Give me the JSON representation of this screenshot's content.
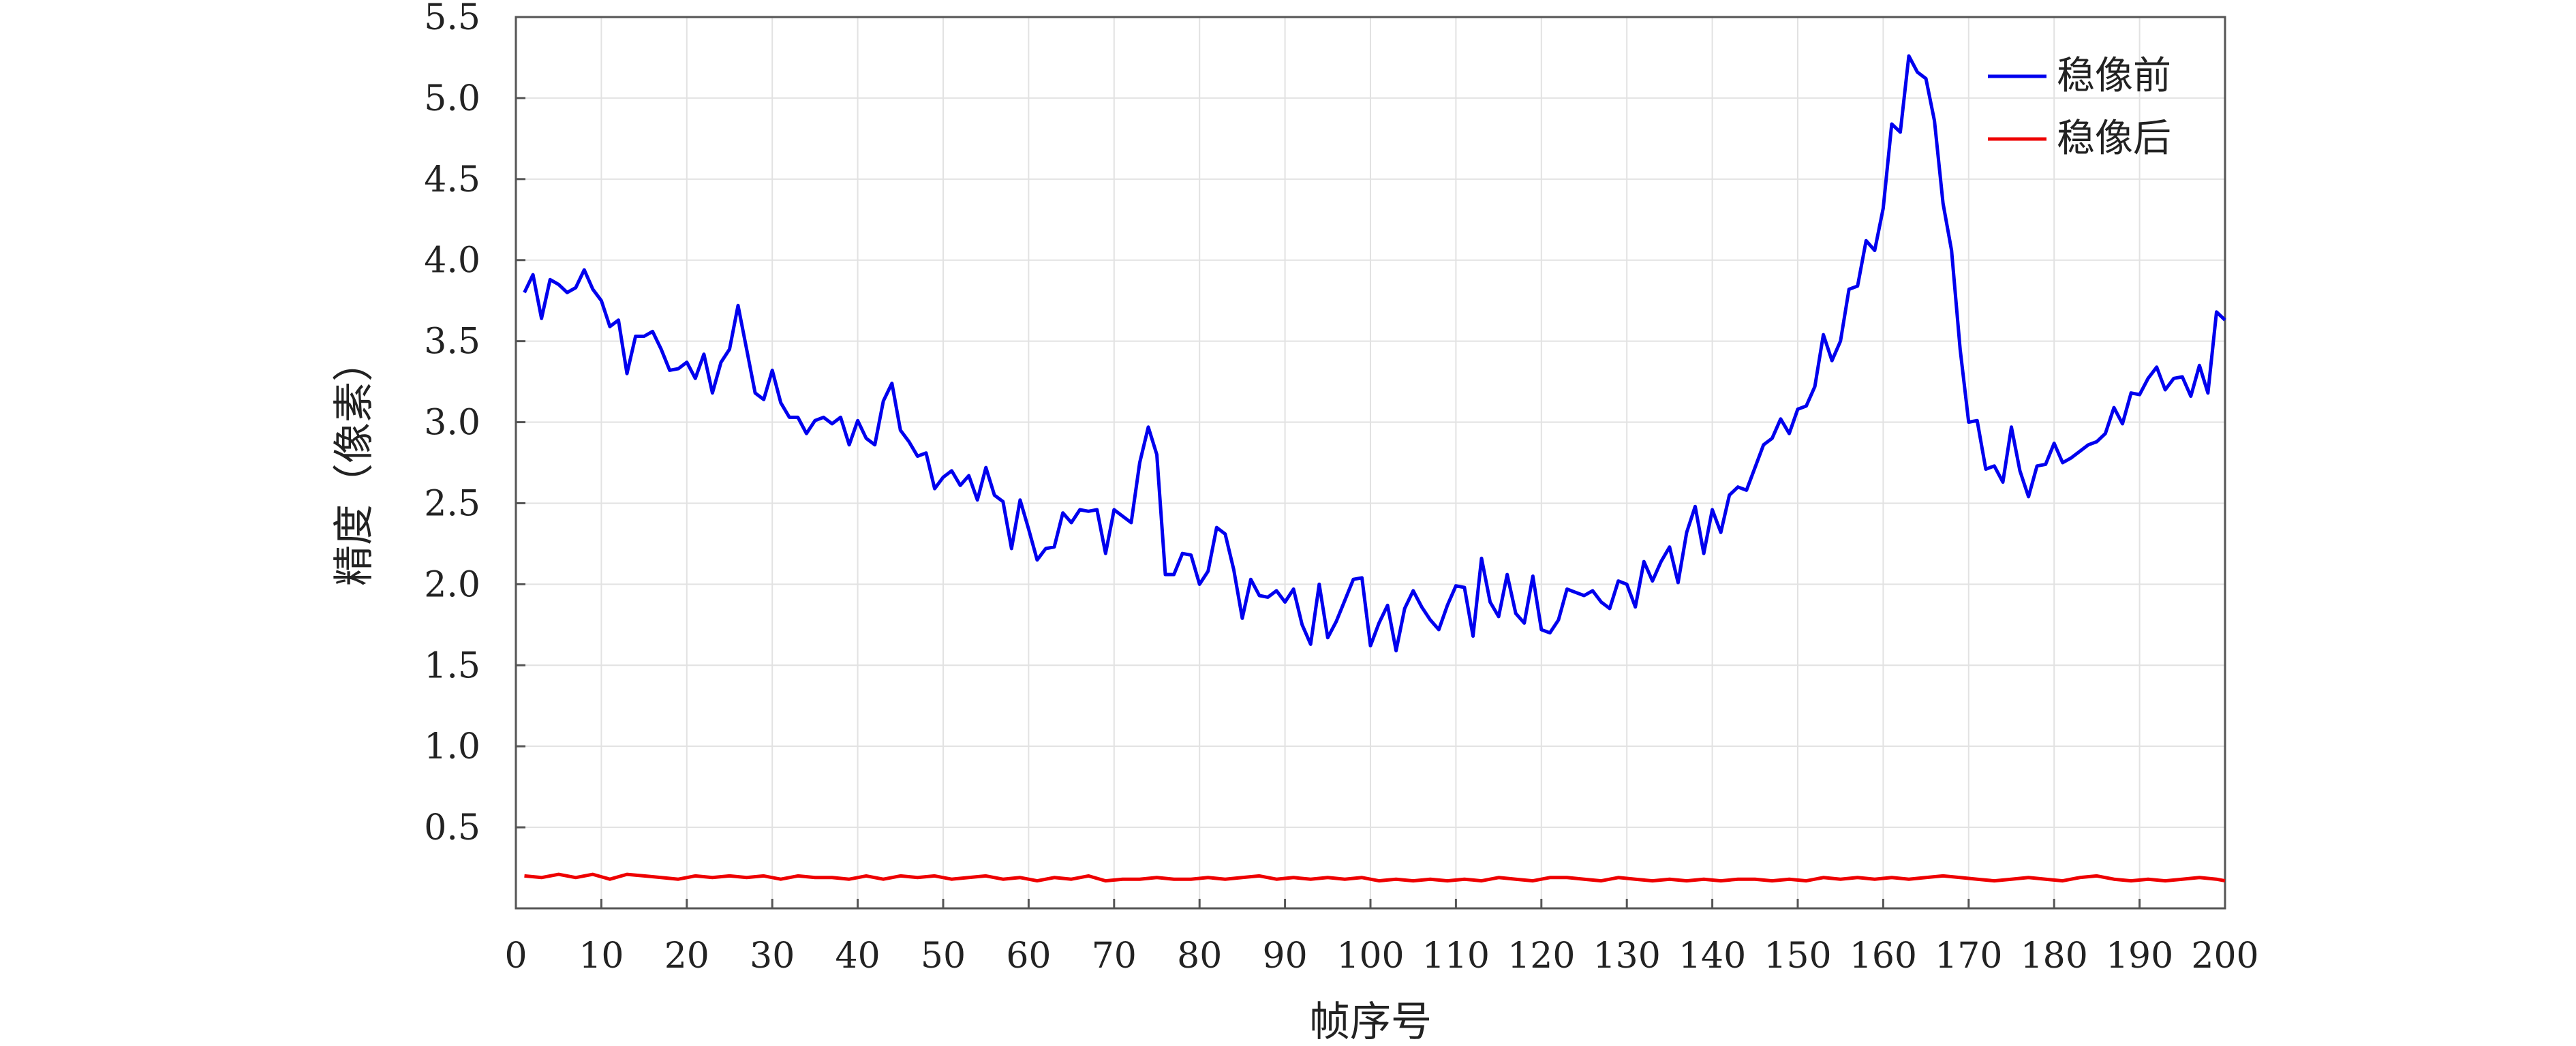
{
  "chart_data": {
    "type": "line",
    "title": "",
    "xlabel": "帧序号",
    "ylabel": "精度（像素）",
    "xlim": [
      0,
      200
    ],
    "ylim": [
      0,
      5.5
    ],
    "x_ticks": [
      0,
      10,
      20,
      30,
      40,
      50,
      60,
      70,
      80,
      90,
      100,
      110,
      120,
      130,
      140,
      150,
      160,
      170,
      180,
      190,
      200
    ],
    "x_tick_labels": [
      "0",
      "10",
      "20",
      "30",
      "40",
      "50",
      "60",
      "70",
      "80",
      "90",
      "100",
      "110",
      "120",
      "130",
      "140",
      "150",
      "160",
      "170",
      "180",
      "190",
      "200"
    ],
    "y_ticks": [
      0.5,
      1.0,
      1.5,
      2.0,
      2.5,
      3.0,
      3.5,
      4.0,
      4.5,
      5.0,
      5.5
    ],
    "y_tick_labels": [
      "0.5",
      "1.0",
      "1.5",
      "2.0",
      "2.5",
      "3.0",
      "3.5",
      "4.0",
      "4.5",
      "5.0",
      "5.5"
    ],
    "grid": true,
    "legend_position": "top-right",
    "series": [
      {
        "name": "稳像前",
        "color": "#0000ee",
        "x": [
          1,
          2,
          3,
          4,
          5,
          6,
          7,
          8,
          9,
          10,
          11,
          12,
          13,
          14,
          15,
          16,
          17,
          18,
          19,
          20,
          21,
          22,
          23,
          24,
          25,
          26,
          27,
          28,
          29,
          30,
          31,
          32,
          33,
          34,
          35,
          36,
          37,
          38,
          39,
          40,
          41,
          42,
          43,
          44,
          45,
          46,
          47,
          48,
          49,
          50,
          51,
          52,
          53,
          54,
          55,
          56,
          57,
          58,
          59,
          60,
          61,
          62,
          63,
          64,
          65,
          66,
          67,
          68,
          69,
          70,
          71,
          72,
          73,
          74,
          75,
          76,
          77,
          78,
          79,
          80,
          81,
          82,
          83,
          84,
          85,
          86,
          87,
          88,
          89,
          90,
          91,
          92,
          93,
          94,
          95,
          96,
          97,
          98,
          99,
          100,
          101,
          102,
          103,
          104,
          105,
          106,
          107,
          108,
          109,
          110,
          111,
          112,
          113,
          114,
          115,
          116,
          117,
          118,
          119,
          120,
          121,
          122,
          123,
          124,
          125,
          126,
          127,
          128,
          129,
          130,
          131,
          132,
          133,
          134,
          135,
          136,
          137,
          138,
          139,
          140,
          141,
          142,
          143,
          144,
          145,
          146,
          147,
          148,
          149,
          150,
          151,
          152,
          153,
          154,
          155,
          156,
          157,
          158,
          159,
          160,
          161,
          162,
          163,
          164,
          165,
          166,
          167,
          168,
          169,
          170,
          171,
          172,
          173,
          174,
          175,
          176,
          177,
          178,
          179,
          180,
          181,
          182,
          183,
          184,
          185,
          186,
          187,
          188,
          189,
          190,
          191,
          192,
          193,
          194,
          195,
          196,
          197,
          198,
          199,
          200
        ],
        "y": [
          3.8,
          3.91,
          3.64,
          3.88,
          3.85,
          3.8,
          3.83,
          3.94,
          3.82,
          3.75,
          3.59,
          3.63,
          3.3,
          3.53,
          3.53,
          3.56,
          3.45,
          3.32,
          3.33,
          3.37,
          3.27,
          3.42,
          3.18,
          3.37,
          3.45,
          3.72,
          3.45,
          3.18,
          3.14,
          3.32,
          3.12,
          3.03,
          3.03,
          2.93,
          3.01,
          3.03,
          2.99,
          3.03,
          2.86,
          3.01,
          2.9,
          2.86,
          3.13,
          3.24,
          2.95,
          2.88,
          2.79,
          2.81,
          2.59,
          2.66,
          2.7,
          2.61,
          2.67,
          2.52,
          2.72,
          2.55,
          2.51,
          2.22,
          2.52,
          2.34,
          2.15,
          2.22,
          2.23,
          2.44,
          2.38,
          2.46,
          2.45,
          2.46,
          2.19,
          2.46,
          2.42,
          2.38,
          2.75,
          2.97,
          2.8,
          2.06,
          2.06,
          2.19,
          2.18,
          2.0,
          2.08,
          2.35,
          2.31,
          2.09,
          1.79,
          2.03,
          1.93,
          1.92,
          1.96,
          1.89,
          1.97,
          1.75,
          1.63,
          2.0,
          1.67,
          1.77,
          1.9,
          2.03,
          2.04,
          1.62,
          1.76,
          1.87,
          1.59,
          1.85,
          1.96,
          1.86,
          1.78,
          1.72,
          1.87,
          1.99,
          1.98,
          1.68,
          2.16,
          1.89,
          1.8,
          2.06,
          1.82,
          1.76,
          2.05,
          1.72,
          1.7,
          1.78,
          1.97,
          1.95,
          1.93,
          1.96,
          1.89,
          1.85,
          2.02,
          2.0,
          1.86,
          2.14,
          2.02,
          2.14,
          2.23,
          2.01,
          2.32,
          2.48,
          2.19,
          2.46,
          2.32,
          2.55,
          2.6,
          2.58,
          2.72,
          2.86,
          2.9,
          3.02,
          2.93,
          3.08,
          3.1,
          3.22,
          3.54,
          3.38,
          3.5,
          3.82,
          3.84,
          4.12,
          4.06,
          4.32,
          4.84,
          4.79,
          5.26,
          5.16,
          5.12,
          4.86,
          4.35,
          4.06,
          3.45,
          3.0,
          3.01,
          2.71,
          2.73,
          2.63,
          2.97,
          2.7,
          2.54,
          2.73,
          2.74,
          2.87,
          2.75,
          2.78,
          2.82,
          2.86,
          2.88,
          2.93,
          3.09,
          2.99,
          3.18,
          3.17,
          3.27,
          3.34,
          3.2,
          3.27,
          3.28,
          3.16,
          3.35,
          3.18,
          3.68,
          3.63
        ]
      },
      {
        "name": "稳像后",
        "color": "#ee0000",
        "x": [
          1,
          3,
          5,
          7,
          9,
          11,
          13,
          15,
          17,
          19,
          21,
          23,
          25,
          27,
          29,
          31,
          33,
          35,
          37,
          39,
          41,
          43,
          45,
          47,
          49,
          51,
          53,
          55,
          57,
          59,
          61,
          63,
          65,
          67,
          69,
          71,
          73,
          75,
          77,
          79,
          81,
          83,
          85,
          87,
          89,
          91,
          93,
          95,
          97,
          99,
          101,
          103,
          105,
          107,
          109,
          111,
          113,
          115,
          117,
          119,
          121,
          123,
          125,
          127,
          129,
          131,
          133,
          135,
          137,
          139,
          141,
          143,
          145,
          147,
          149,
          151,
          153,
          155,
          157,
          159,
          161,
          163,
          165,
          167,
          169,
          171,
          173,
          175,
          177,
          179,
          181,
          183,
          185,
          187,
          189,
          191,
          193,
          195,
          197,
          199,
          200
        ],
        "y": [
          0.2,
          0.19,
          0.21,
          0.19,
          0.21,
          0.18,
          0.21,
          0.2,
          0.19,
          0.18,
          0.2,
          0.19,
          0.2,
          0.19,
          0.2,
          0.18,
          0.2,
          0.19,
          0.19,
          0.18,
          0.2,
          0.18,
          0.2,
          0.19,
          0.2,
          0.18,
          0.19,
          0.2,
          0.18,
          0.19,
          0.17,
          0.19,
          0.18,
          0.2,
          0.17,
          0.18,
          0.18,
          0.19,
          0.18,
          0.18,
          0.19,
          0.18,
          0.19,
          0.2,
          0.18,
          0.19,
          0.18,
          0.19,
          0.18,
          0.19,
          0.17,
          0.18,
          0.17,
          0.18,
          0.17,
          0.18,
          0.17,
          0.19,
          0.18,
          0.17,
          0.19,
          0.19,
          0.18,
          0.17,
          0.19,
          0.18,
          0.17,
          0.18,
          0.17,
          0.18,
          0.17,
          0.18,
          0.18,
          0.17,
          0.18,
          0.17,
          0.19,
          0.18,
          0.19,
          0.18,
          0.19,
          0.18,
          0.19,
          0.2,
          0.19,
          0.18,
          0.17,
          0.18,
          0.19,
          0.18,
          0.17,
          0.19,
          0.2,
          0.18,
          0.17,
          0.18,
          0.17,
          0.18,
          0.19,
          0.18,
          0.17
        ]
      }
    ]
  }
}
